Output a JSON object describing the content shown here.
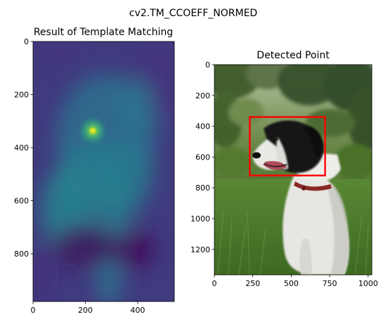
{
  "figure": {
    "suptitle": "cv2.TM_CCOEFF_NORMED"
  },
  "chart_data": [
    {
      "type": "heatmap",
      "title": "Result of Template Matching",
      "xlabel": "",
      "ylabel": "",
      "x_range": [
        0,
        540
      ],
      "y_range": [
        980,
        0
      ],
      "xticks": [
        0,
        200,
        400
      ],
      "yticks": [
        0,
        200,
        400,
        600,
        800
      ],
      "colormap": "viridis",
      "peak": {
        "x": 230,
        "y": 340,
        "value": 1.0
      },
      "secondary_bright_regions": [
        {
          "x": 170,
          "y": 230,
          "value": 0.55
        },
        {
          "x": 300,
          "y": 200,
          "value": 0.45
        },
        {
          "x": 140,
          "y": 480,
          "value": 0.45
        },
        {
          "x": 80,
          "y": 620,
          "value": 0.42
        },
        {
          "x": 150,
          "y": 950,
          "value": 0.45
        }
      ],
      "dark_regions": [
        {
          "x": 60,
          "y": 40,
          "value": 0.05
        },
        {
          "x": 480,
          "y": 80,
          "value": 0.05
        },
        {
          "x": 460,
          "y": 220,
          "value": 0.08
        },
        {
          "x": 200,
          "y": 780,
          "value": 0.03
        },
        {
          "x": 370,
          "y": 790,
          "value": 0.03
        }
      ]
    },
    {
      "type": "image",
      "title": "Detected Point",
      "xlabel": "",
      "ylabel": "",
      "x_range": [
        0,
        1024
      ],
      "y_range": [
        1365,
        0
      ],
      "xticks": [
        0,
        250,
        500,
        750,
        1000
      ],
      "yticks": [
        0,
        200,
        400,
        600,
        800,
        1000,
        1200
      ],
      "detected_box": {
        "x0": 230,
        "y0": 340,
        "x1": 720,
        "y1": 720,
        "color": "#ff0000"
      },
      "scene": {
        "sky_color": "#c7d1b3",
        "tree_color": "#39502a",
        "grass_color": "#4d7a30",
        "dog_fur_color": "#e9e9e6",
        "dog_head_color": "#151515",
        "collar_color": "#8c2a27"
      }
    }
  ]
}
